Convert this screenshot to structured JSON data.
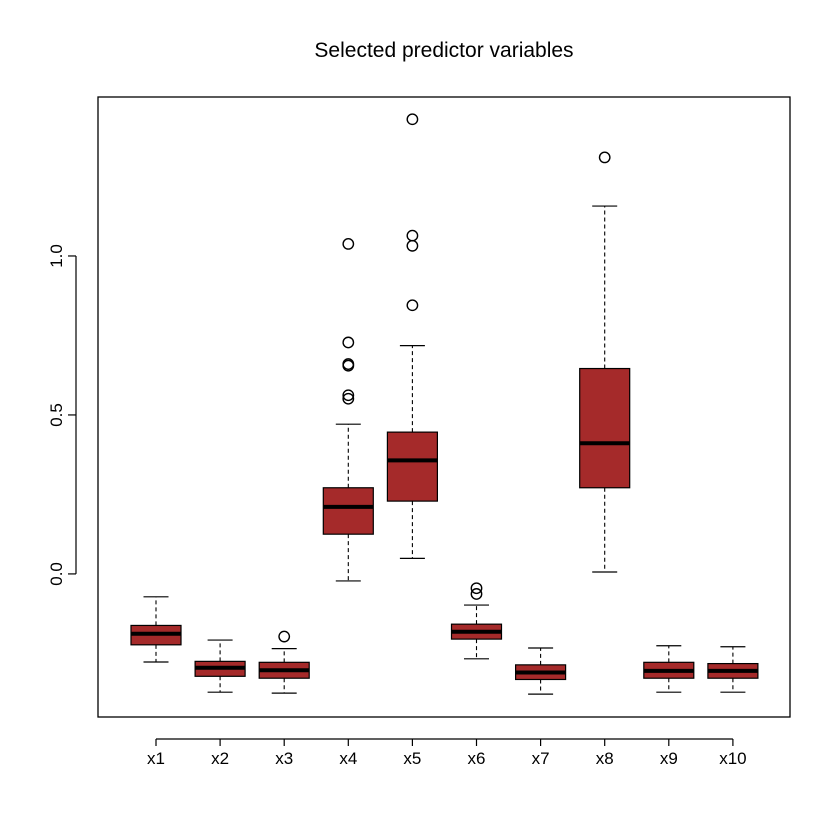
{
  "chart_data": {
    "type": "boxplot",
    "title": "Selected predictor variables",
    "xlabel": "",
    "ylabel": "",
    "ylim": [
      -0.45,
      1.5
    ],
    "yticks": [
      0.0,
      0.5,
      1.0
    ],
    "ytick_labels": [
      "0.0",
      "0.5",
      "1.0"
    ],
    "grid": false,
    "legend": "none",
    "colors": {
      "box_fill": "#a52a2a",
      "stroke": "#000000"
    },
    "categories": [
      "x1",
      "x2",
      "x3",
      "x4",
      "x5",
      "x6",
      "x7",
      "x8",
      "x9",
      "x10"
    ],
    "boxes": [
      {
        "name": "x1",
        "whisker_low": -0.277,
        "q1": -0.223,
        "median": -0.188,
        "q3": -0.162,
        "whisker_high": -0.072,
        "outliers": []
      },
      {
        "name": "x2",
        "whisker_low": -0.372,
        "q1": -0.322,
        "median": -0.295,
        "q3": -0.275,
        "whisker_high": -0.208,
        "outliers": []
      },
      {
        "name": "x3",
        "whisker_low": -0.375,
        "q1": -0.328,
        "median": -0.303,
        "q3": -0.278,
        "whisker_high": -0.235,
        "outliers": [
          -0.197
        ]
      },
      {
        "name": "x4",
        "whisker_low": -0.022,
        "q1": 0.125,
        "median": 0.211,
        "q3": 0.271,
        "whisker_high": 0.471,
        "outliers": [
          0.551,
          0.562,
          0.655,
          0.66,
          0.728,
          1.038
        ]
      },
      {
        "name": "x5",
        "whisker_low": 0.049,
        "q1": 0.229,
        "median": 0.357,
        "q3": 0.446,
        "whisker_high": 0.718,
        "outliers": [
          0.845,
          1.032,
          1.064,
          1.43
        ]
      },
      {
        "name": "x6",
        "whisker_low": -0.267,
        "q1": -0.205,
        "median": -0.182,
        "q3": -0.158,
        "whisker_high": -0.098,
        "outliers": [
          -0.045,
          -0.063
        ]
      },
      {
        "name": "x7",
        "whisker_low": -0.378,
        "q1": -0.332,
        "median": -0.31,
        "q3": -0.286,
        "whisker_high": -0.233,
        "outliers": []
      },
      {
        "name": "x8",
        "whisker_low": 0.006,
        "q1": 0.271,
        "median": 0.411,
        "q3": 0.646,
        "whisker_high": 1.157,
        "outliers": [
          1.31
        ]
      },
      {
        "name": "x9",
        "whisker_low": -0.372,
        "q1": -0.328,
        "median": -0.305,
        "q3": -0.278,
        "whisker_high": -0.226,
        "outliers": []
      },
      {
        "name": "x10",
        "whisker_low": -0.372,
        "q1": -0.328,
        "median": -0.305,
        "q3": -0.282,
        "whisker_high": -0.229,
        "outliers": []
      }
    ]
  }
}
